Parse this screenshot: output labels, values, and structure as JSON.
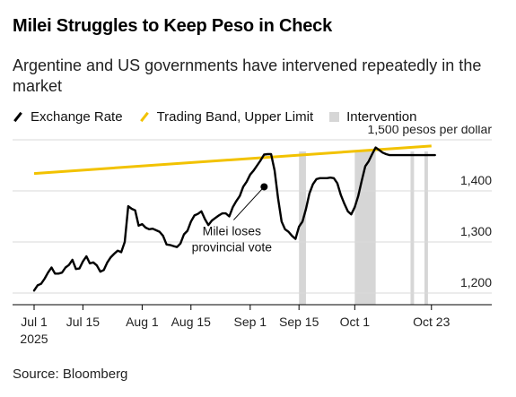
{
  "title": "Milei Struggles to Keep Peso in Check",
  "subtitle": "Argentine and US governments have intervened repeatedly in the market",
  "source": "Source: Bloomberg",
  "legend": {
    "exchange_rate": "Exchange Rate",
    "trading_band": "Trading Band, Upper Limit",
    "intervention": "Intervention"
  },
  "colors": {
    "exchange_rate": "#000000",
    "trading_band": "#f2c200",
    "intervention": "#d6d6d6"
  },
  "chart_data": {
    "type": "line",
    "ylim": [
      1170,
      1510
    ],
    "ytick_values": [
      1200,
      1300,
      1400,
      1500
    ],
    "ytick_labels": [
      "1,200",
      "1,300",
      "1,400",
      "1,500 pesos per dollar"
    ],
    "xticks": [
      {
        "day": 0,
        "label": "Jul 1",
        "label2": "2025"
      },
      {
        "day": 14,
        "label": "Jul 15"
      },
      {
        "day": 31,
        "label": "Aug 1"
      },
      {
        "day": 45,
        "label": "Aug 15"
      },
      {
        "day": 62,
        "label": "Sep 1"
      },
      {
        "day": 76,
        "label": "Sep 15"
      },
      {
        "day": 92,
        "label": "Oct 1"
      },
      {
        "day": 114,
        "label": "Oct 23"
      }
    ],
    "series": [
      {
        "name": "Exchange Rate",
        "x": [
          0,
          1,
          2,
          3,
          4,
          5,
          6,
          7,
          8,
          9,
          10,
          11,
          12,
          13,
          14,
          15,
          16,
          17,
          18,
          19,
          20,
          21,
          22,
          23,
          24,
          25,
          26,
          27,
          28,
          29,
          30,
          31,
          32,
          33,
          34,
          35,
          36,
          37,
          38,
          39,
          40,
          41,
          42,
          43,
          44,
          45,
          46,
          47,
          48,
          49,
          50,
          51,
          52,
          53,
          54,
          55,
          56,
          57,
          58,
          59,
          60,
          61,
          62,
          63,
          64,
          65,
          66,
          67,
          68,
          69,
          70,
          71,
          72,
          73,
          74,
          75,
          76,
          77,
          78,
          79,
          80,
          81,
          82,
          83,
          84,
          85,
          86,
          87,
          88,
          89,
          90,
          91,
          92,
          93,
          94,
          95,
          96,
          97,
          98,
          99,
          100,
          101,
          102,
          103,
          104,
          105,
          106,
          107,
          108,
          109,
          110,
          111,
          112,
          113,
          114,
          115
        ],
        "y": [
          1205,
          1215,
          1218,
          1228,
          1240,
          1250,
          1238,
          1238,
          1240,
          1250,
          1255,
          1265,
          1247,
          1248,
          1262,
          1272,
          1258,
          1260,
          1254,
          1242,
          1245,
          1260,
          1270,
          1277,
          1283,
          1280,
          1300,
          1370,
          1365,
          1362,
          1332,
          1335,
          1328,
          1325,
          1326,
          1323,
          1320,
          1312,
          1295,
          1294,
          1292,
          1290,
          1297,
          1315,
          1322,
          1340,
          1352,
          1355,
          1360,
          1345,
          1333,
          1342,
          1347,
          1352,
          1356,
          1356,
          1350,
          1368,
          1380,
          1390,
          1408,
          1418,
          1432,
          1440,
          1450,
          1460,
          1471,
          1472,
          1472,
          1440,
          1385,
          1340,
          1325,
          1320,
          1312,
          1306,
          1330,
          1340,
          1365,
          1395,
          1413,
          1423,
          1425,
          1425,
          1425,
          1426,
          1425,
          1415,
          1392,
          1375,
          1360,
          1354,
          1368,
          1390,
          1420,
          1448,
          1458,
          1472,
          1485,
          1480,
          1475,
          1472,
          1470,
          1470,
          1470,
          1470,
          1470,
          1470,
          1470,
          1470,
          1470,
          1470,
          1470,
          1470,
          1470,
          1470
        ]
      },
      {
        "name": "Trading Band, Upper Limit",
        "x": [
          0,
          114
        ],
        "y": [
          1434,
          1488
        ]
      }
    ],
    "intervention_spans": [
      [
        76,
        78
      ],
      [
        92,
        98
      ],
      [
        108,
        109
      ],
      [
        112,
        113
      ]
    ],
    "annotations": [
      {
        "text": "Milei loses provincial vote",
        "lines": [
          "Milei loses",
          "provincial vote"
        ],
        "day": 66,
        "value": 1408
      }
    ]
  }
}
